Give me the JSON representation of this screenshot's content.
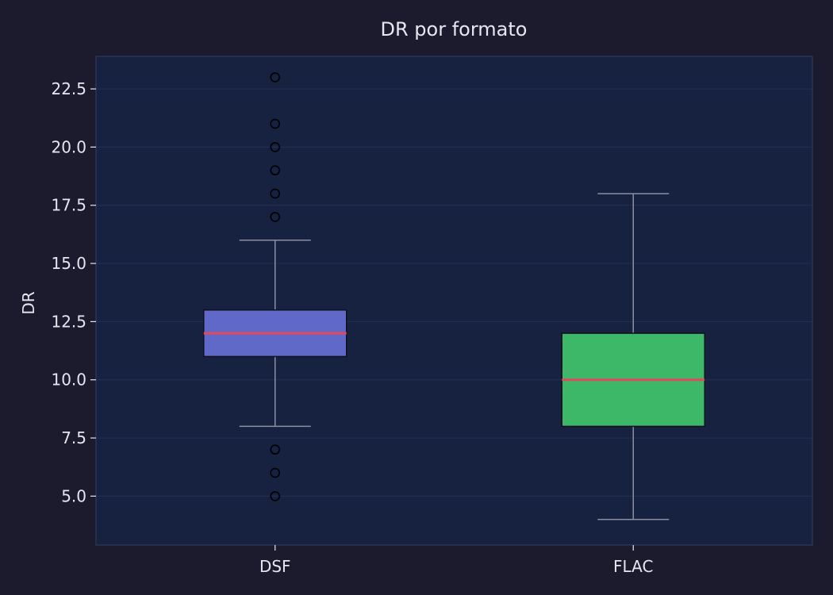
{
  "chart_data": {
    "type": "box",
    "title": "DR por formato",
    "xlabel": "",
    "ylabel": "DR",
    "ylim": [
      2.9,
      23.9
    ],
    "yticks": [
      "5.0",
      "7.5",
      "10.0",
      "12.5",
      "15.0",
      "17.5",
      "20.0",
      "22.5"
    ],
    "categories": [
      "DSF",
      "FLAC"
    ],
    "boxes": [
      {
        "category": "DSF",
        "whisker_low": 8,
        "q1": 11,
        "median": 12,
        "q3": 13,
        "whisker_high": 16,
        "outliers": [
          5,
          6,
          7,
          17,
          18,
          19,
          20,
          21,
          23
        ],
        "color": "#6068c8"
      },
      {
        "category": "FLAC",
        "whisker_low": 4,
        "q1": 8,
        "median": 10,
        "q3": 12,
        "whisker_high": 18,
        "outliers": [],
        "color": "#3db868"
      }
    ],
    "grid": true,
    "colors": {
      "background": "#1b1b2d",
      "plot_background": "#172240",
      "grid": "#233054",
      "axis_frame": "#2a3552",
      "whisker": "#8a8fa3",
      "median": "#e0485e",
      "text": "#e6e6f0",
      "outlier": "#000000"
    }
  }
}
